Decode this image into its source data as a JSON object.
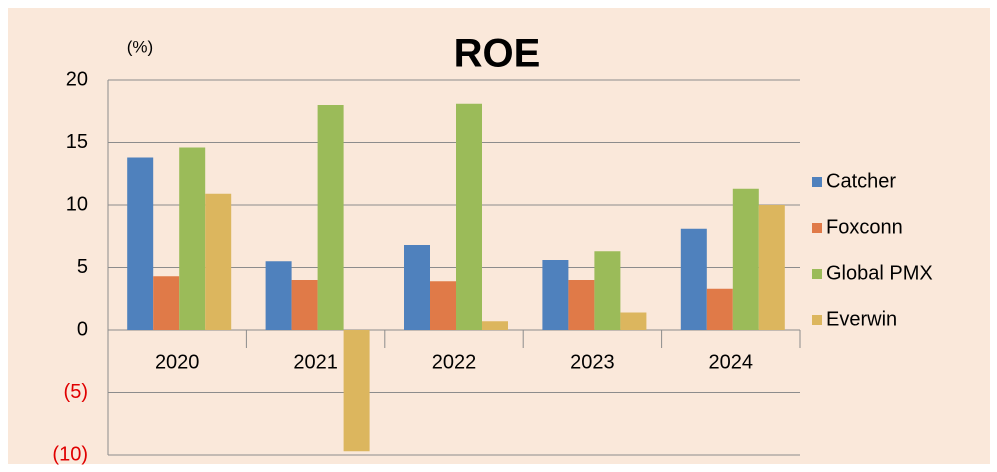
{
  "chart_data": {
    "type": "bar",
    "title": "ROE",
    "y_unit_label": "(%)",
    "categories": [
      "2020",
      "2021",
      "2022",
      "2023",
      "2024"
    ],
    "series": [
      {
        "name": "Catcher",
        "color": "#4f81bd",
        "values": [
          13.8,
          5.5,
          6.8,
          5.6,
          8.1
        ]
      },
      {
        "name": "Foxconn",
        "color": "#e07a48",
        "values": [
          4.3,
          4.0,
          3.9,
          4.0,
          3.3
        ]
      },
      {
        "name": "Global PMX",
        "color": "#9bbb59",
        "values": [
          14.6,
          18.0,
          18.1,
          6.3,
          11.3
        ]
      },
      {
        "name": "Everwin",
        "color": "#dcb65e",
        "values": [
          10.9,
          -9.7,
          0.7,
          1.4,
          10.0
        ]
      }
    ],
    "ylim": [
      -10,
      20
    ],
    "yticks": [
      {
        "value": -10,
        "label": "(10)"
      },
      {
        "value": -5,
        "label": "(5)"
      },
      0,
      5,
      10,
      15,
      20
    ],
    "negative_tick_color": "#e00000",
    "grid": true,
    "legend": "right"
  }
}
